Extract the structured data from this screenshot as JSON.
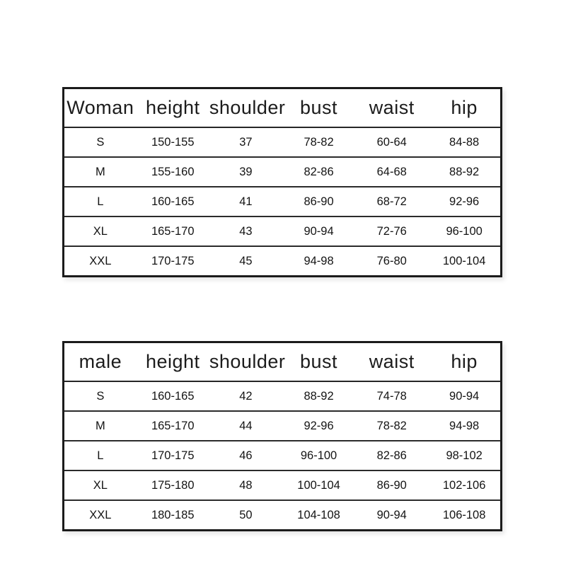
{
  "colors": {
    "background": "#ffffff",
    "table_border": "#1b1b1b",
    "row_divider": "#2b2b2b",
    "text": "#1c1c1c"
  },
  "chart_data": [
    {
      "type": "table",
      "title": "woman-size-chart",
      "headers": [
        "Woman",
        "height",
        "shoulder",
        "bust",
        "waist",
        "hip"
      ],
      "rows": [
        [
          "S",
          "150-155",
          "37",
          "78-82",
          "60-64",
          "84-88"
        ],
        [
          "M",
          "155-160",
          "39",
          "82-86",
          "64-68",
          "88-92"
        ],
        [
          "L",
          "160-165",
          "41",
          "86-90",
          "68-72",
          "92-96"
        ],
        [
          "XL",
          "165-170",
          "43",
          "90-94",
          "72-76",
          "96-100"
        ],
        [
          "XXL",
          "170-175",
          "45",
          "94-98",
          "76-80",
          "100-104"
        ]
      ]
    },
    {
      "type": "table",
      "title": "male-size-chart",
      "headers": [
        "male",
        "height",
        "shoulder",
        "bust",
        "waist",
        "hip"
      ],
      "rows": [
        [
          "S",
          "160-165",
          "42",
          "88-92",
          "74-78",
          "90-94"
        ],
        [
          "M",
          "165-170",
          "44",
          "92-96",
          "78-82",
          "94-98"
        ],
        [
          "L",
          "170-175",
          "46",
          "96-100",
          "82-86",
          "98-102"
        ],
        [
          "XL",
          "175-180",
          "48",
          "100-104",
          "86-90",
          "102-106"
        ],
        [
          "XXL",
          "180-185",
          "50",
          "104-108",
          "90-94",
          "106-108"
        ]
      ]
    }
  ]
}
